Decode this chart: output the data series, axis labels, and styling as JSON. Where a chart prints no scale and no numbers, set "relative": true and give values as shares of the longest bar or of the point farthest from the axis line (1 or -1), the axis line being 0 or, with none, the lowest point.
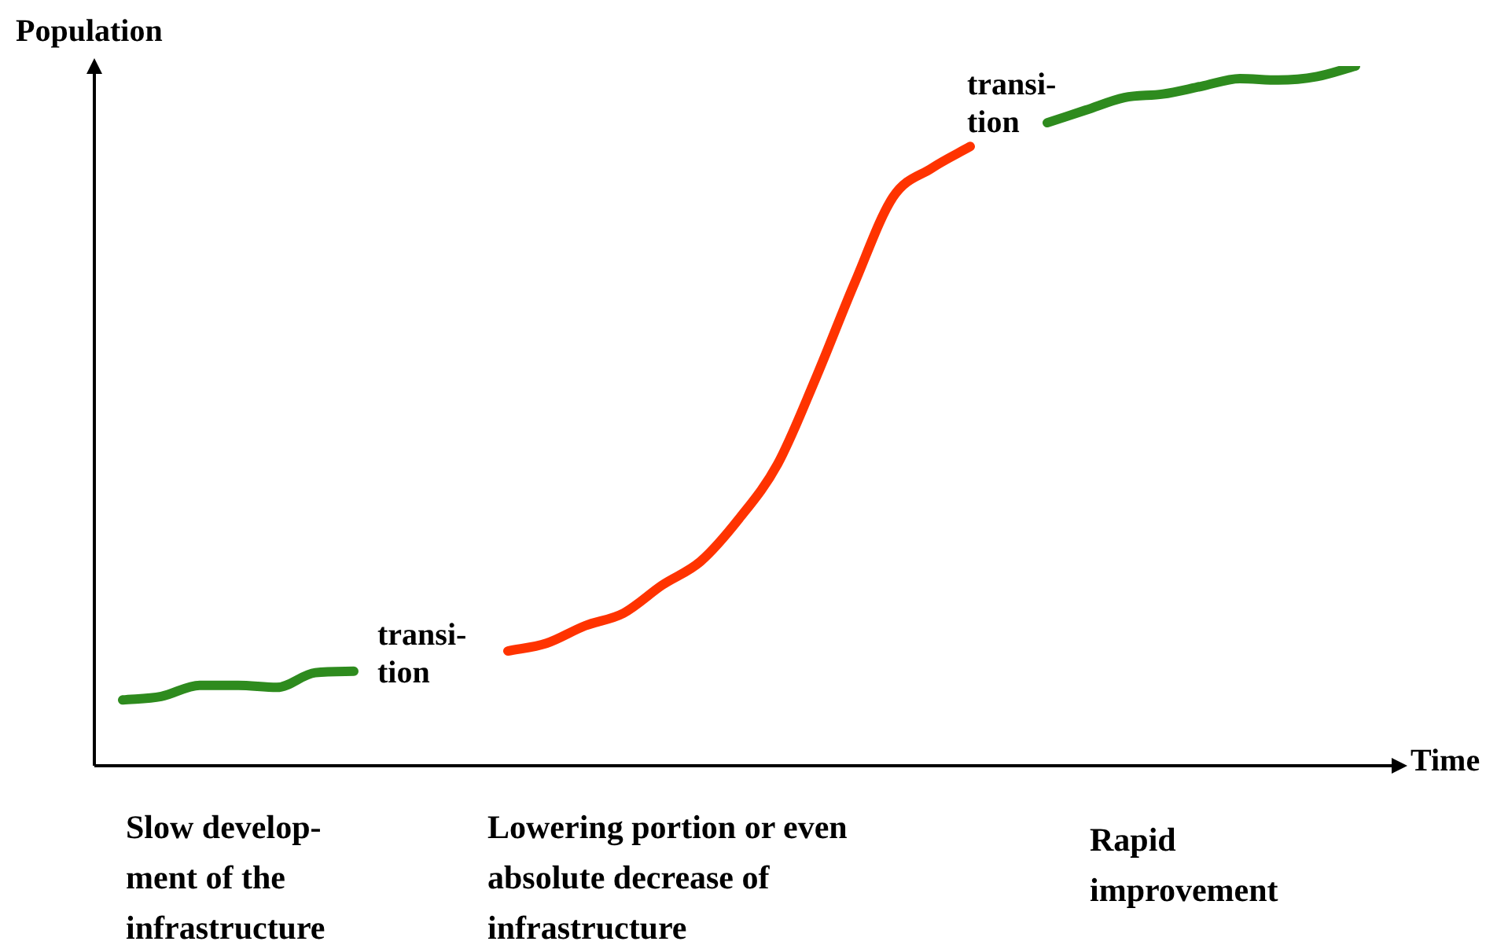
{
  "chart_data": {
    "type": "line",
    "relative": true,
    "ylabel": "Population",
    "xlabel": "Time",
    "categories": [
      null,
      null,
      null,
      null,
      null,
      null,
      null,
      null,
      null,
      null,
      null,
      null,
      null,
      null,
      null,
      null,
      null,
      null,
      null,
      null,
      null,
      null,
      null,
      null,
      null,
      null,
      null,
      null,
      null,
      null,
      null,
      null,
      null
    ],
    "series": [
      {
        "color": "#2e8b1e",
        "values": [
          0.094,
          0.099,
          0.115,
          0.115,
          0.112,
          0.133,
          0.135,
          null,
          null,
          null,
          null,
          null,
          null,
          null,
          null,
          null,
          null,
          null,
          null,
          null,
          null,
          null,
          null,
          null,
          null,
          null,
          null,
          null,
          null,
          null,
          null,
          null,
          null
        ]
      },
      {
        "color": "#ff3300",
        "values": [
          null,
          null,
          null,
          null,
          null,
          null,
          null,
          null,
          null,
          null,
          0.164,
          0.175,
          0.2,
          0.218,
          0.258,
          0.292,
          0.353,
          0.431,
          0.555,
          0.69,
          0.813,
          0.854,
          0.885,
          null,
          null,
          null,
          null,
          null,
          null,
          null,
          null,
          null,
          null
        ]
      },
      {
        "color": "#2e8b1e",
        "values": [
          null,
          null,
          null,
          null,
          null,
          null,
          null,
          null,
          null,
          null,
          null,
          null,
          null,
          null,
          null,
          null,
          null,
          null,
          null,
          null,
          null,
          null,
          null,
          null,
          0.919,
          0.937,
          0.955,
          0.96,
          0.971,
          0.982,
          0.98,
          0.985,
          1
        ]
      }
    ],
    "annotations": [
      "transi-\ntion",
      "transi-\ntion",
      "Slow develop-\nment of the\ninfrastructure",
      "Lowering portion or even\nabsolute decrease of\ninfrastructure",
      "Rapid\nimprovement"
    ]
  }
}
